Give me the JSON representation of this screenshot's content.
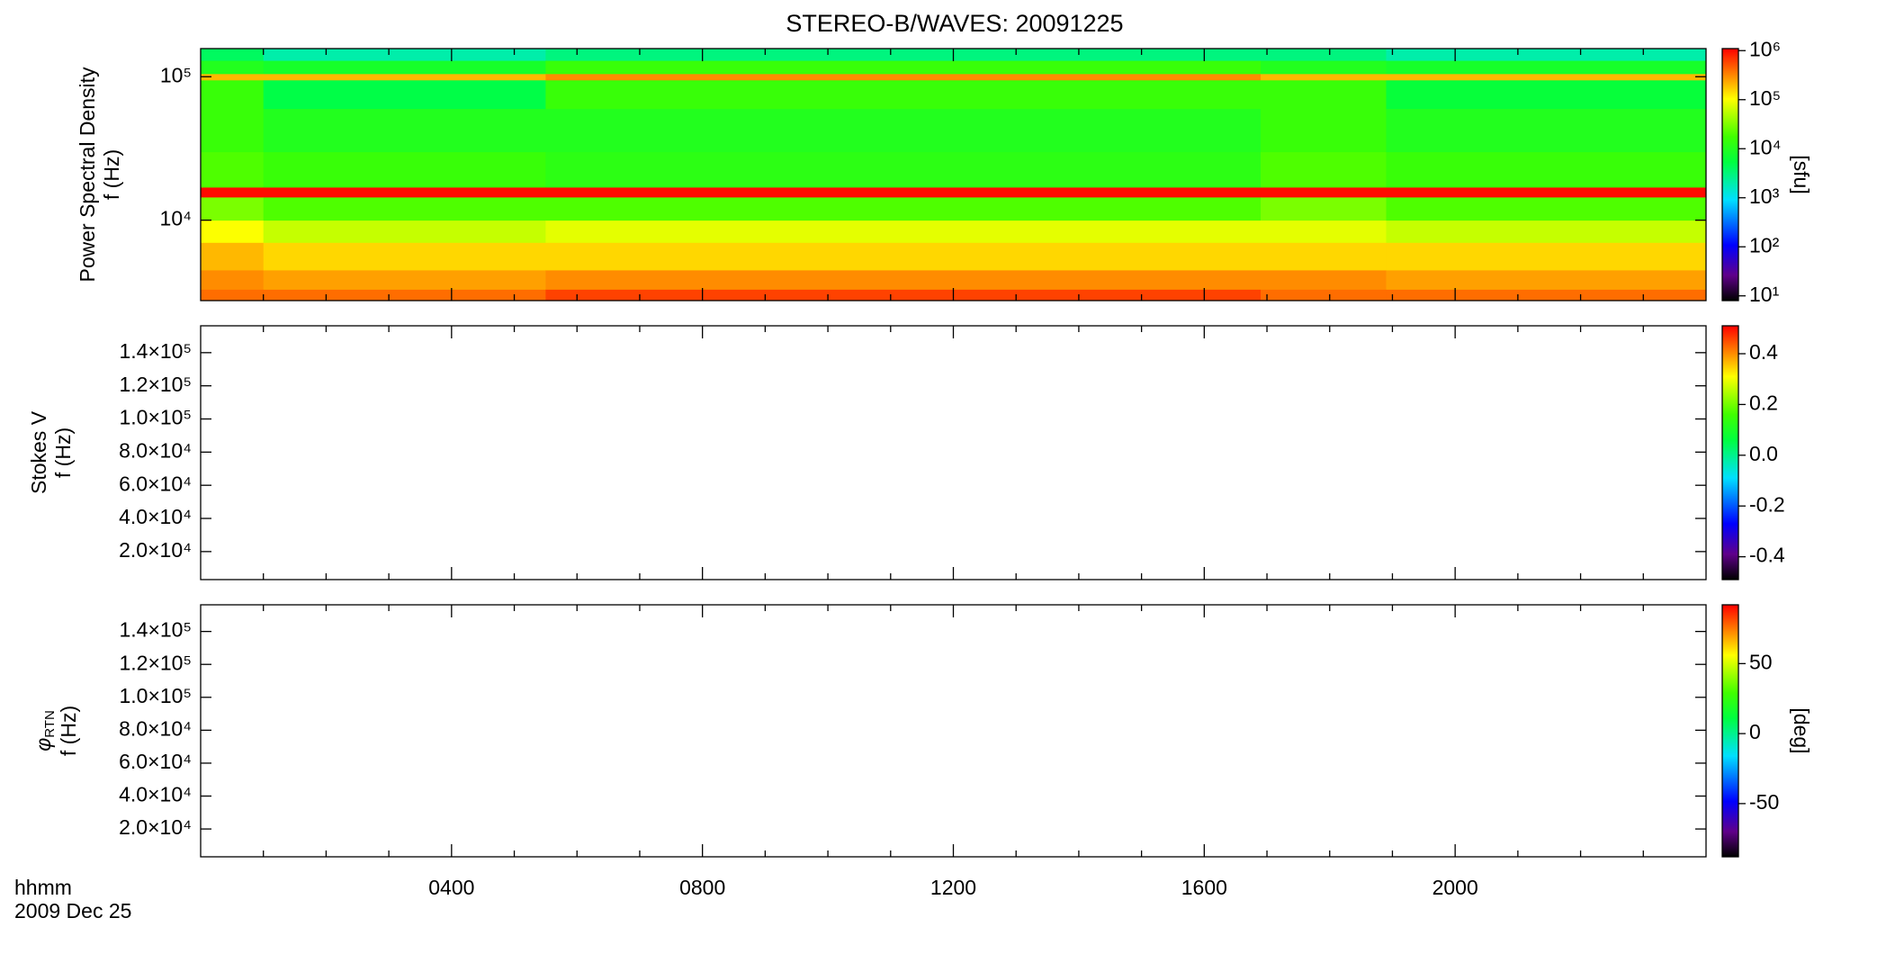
{
  "chart_data": [
    {
      "type": "spectrogram",
      "title": "STEREO-B/WAVES: 20091225",
      "y_label": [
        "Power Spectral Density",
        "f (Hz)"
      ],
      "ylog": true,
      "ylim": [
        2750,
        157000
      ],
      "yticks": [
        {
          "value": 10000,
          "label": "10⁴"
        },
        {
          "value": 100000,
          "label": "10⁵"
        }
      ],
      "time_edges": [
        0,
        1,
        5.5,
        16.9,
        18.9,
        24
      ],
      "freq_edges": [
        2750,
        3300,
        4500,
        7000,
        10000,
        14500,
        17000,
        30000,
        60000,
        95000,
        105000,
        130000,
        157000
      ],
      "values": [
        [
          400000,
          300000,
          200000,
          100000,
          30000,
          1000000,
          20000,
          15000,
          15000,
          200000,
          10000,
          4000
        ],
        [
          400000,
          250000,
          150000,
          60000,
          20000,
          1000000,
          15000,
          10000,
          5000,
          200000,
          8000,
          2000
        ],
        [
          600000,
          300000,
          150000,
          80000,
          20000,
          1000000,
          12000,
          10000,
          15000,
          300000,
          15000,
          3000
        ],
        [
          400000,
          300000,
          150000,
          80000,
          30000,
          1000000,
          20000,
          15000,
          15000,
          200000,
          10000,
          3000
        ],
        [
          400000,
          250000,
          150000,
          60000,
          20000,
          1000000,
          15000,
          10000,
          6000,
          200000,
          8000,
          2000
        ]
      ],
      "clog": true,
      "clim": [
        8,
        1100000
      ],
      "cticks": [
        {
          "value": 10,
          "label": "10¹"
        },
        {
          "value": 100,
          "label": "10²"
        },
        {
          "value": 1000,
          "label": "10³"
        },
        {
          "value": 10000,
          "label": "10⁴"
        },
        {
          "value": 100000,
          "label": "10⁵"
        },
        {
          "value": 1000000,
          "label": "10⁶"
        }
      ],
      "colorbar_label": "[sfu]"
    },
    {
      "type": "spectrogram",
      "y_label": [
        "Stokes V",
        "f (Hz)"
      ],
      "ylim": [
        3100,
        156200
      ],
      "yticks": [
        {
          "value": 20000,
          "label": "2.0×10⁴"
        },
        {
          "value": 40000,
          "label": "4.0×10⁴"
        },
        {
          "value": 60000,
          "label": "6.0×10⁴"
        },
        {
          "value": 80000,
          "label": "8.0×10⁴"
        },
        {
          "value": 100000,
          "label": "1.0×10⁵"
        },
        {
          "value": 120000,
          "label": "1.2×10⁵"
        },
        {
          "value": 140000,
          "label": "1.4×10⁵"
        }
      ],
      "clim": [
        -0.49,
        0.51
      ],
      "cticks": [
        -0.4,
        -0.2,
        {
          "value": 0,
          "label": "0.0"
        },
        0.2,
        0.4
      ]
    },
    {
      "type": "spectrogram",
      "y_symbol": "φ",
      "y_symbol_sub": "RTN",
      "y_label": [
        "f (Hz)"
      ],
      "ylim": [
        3100,
        156200
      ],
      "yticks": [
        {
          "value": 20000,
          "label": "2.0×10⁴"
        },
        {
          "value": 40000,
          "label": "4.0×10⁴"
        },
        {
          "value": 60000,
          "label": "6.0×10⁴"
        },
        {
          "value": 80000,
          "label": "8.0×10⁴"
        },
        {
          "value": 100000,
          "label": "1.0×10⁵"
        },
        {
          "value": 120000,
          "label": "1.2×10⁵"
        },
        {
          "value": 140000,
          "label": "1.4×10⁵"
        }
      ],
      "clim": [
        -88,
        92
      ],
      "cticks": [
        -50,
        0,
        50
      ],
      "colorbar_label": "[deg]",
      "xlim": [
        0,
        24
      ],
      "xticks": [
        {
          "value": 4,
          "label": "0400"
        },
        {
          "value": 8,
          "label": "0800"
        },
        {
          "value": 12,
          "label": "1200"
        },
        {
          "value": 16,
          "label": "1600"
        },
        {
          "value": 20,
          "label": "2000"
        }
      ],
      "xminor": [
        1,
        2,
        3,
        5,
        6,
        7,
        9,
        10,
        11,
        13,
        14,
        15,
        17,
        18,
        19,
        21,
        22,
        23
      ],
      "x_label": [
        "hhmm",
        "2009 Dec 25"
      ]
    }
  ]
}
